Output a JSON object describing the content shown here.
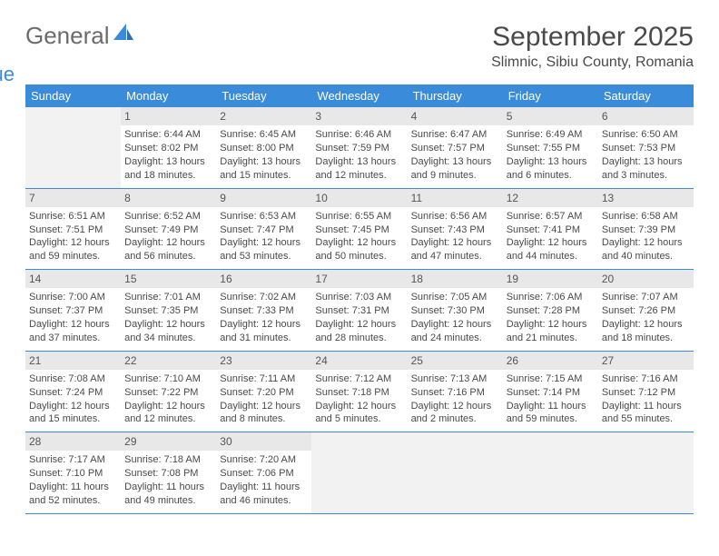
{
  "logo": {
    "word1": "General",
    "word2": "Blue"
  },
  "colors": {
    "brand": "#3a8bd9",
    "headerText": "#4a4a4a"
  },
  "title": "September 2025",
  "location": "Slimnic, Sibiu County, Romania",
  "dayNames": [
    "Sunday",
    "Monday",
    "Tuesday",
    "Wednesday",
    "Thursday",
    "Friday",
    "Saturday"
  ],
  "weeks": [
    [
      {
        "n": "",
        "sr": "",
        "ss": "",
        "dl": ""
      },
      {
        "n": "1",
        "sr": "Sunrise: 6:44 AM",
        "ss": "Sunset: 8:02 PM",
        "dl": "Daylight: 13 hours and 18 minutes."
      },
      {
        "n": "2",
        "sr": "Sunrise: 6:45 AM",
        "ss": "Sunset: 8:00 PM",
        "dl": "Daylight: 13 hours and 15 minutes."
      },
      {
        "n": "3",
        "sr": "Sunrise: 6:46 AM",
        "ss": "Sunset: 7:59 PM",
        "dl": "Daylight: 13 hours and 12 minutes."
      },
      {
        "n": "4",
        "sr": "Sunrise: 6:47 AM",
        "ss": "Sunset: 7:57 PM",
        "dl": "Daylight: 13 hours and 9 minutes."
      },
      {
        "n": "5",
        "sr": "Sunrise: 6:49 AM",
        "ss": "Sunset: 7:55 PM",
        "dl": "Daylight: 13 hours and 6 minutes."
      },
      {
        "n": "6",
        "sr": "Sunrise: 6:50 AM",
        "ss": "Sunset: 7:53 PM",
        "dl": "Daylight: 13 hours and 3 minutes."
      }
    ],
    [
      {
        "n": "7",
        "sr": "Sunrise: 6:51 AM",
        "ss": "Sunset: 7:51 PM",
        "dl": "Daylight: 12 hours and 59 minutes."
      },
      {
        "n": "8",
        "sr": "Sunrise: 6:52 AM",
        "ss": "Sunset: 7:49 PM",
        "dl": "Daylight: 12 hours and 56 minutes."
      },
      {
        "n": "9",
        "sr": "Sunrise: 6:53 AM",
        "ss": "Sunset: 7:47 PM",
        "dl": "Daylight: 12 hours and 53 minutes."
      },
      {
        "n": "10",
        "sr": "Sunrise: 6:55 AM",
        "ss": "Sunset: 7:45 PM",
        "dl": "Daylight: 12 hours and 50 minutes."
      },
      {
        "n": "11",
        "sr": "Sunrise: 6:56 AM",
        "ss": "Sunset: 7:43 PM",
        "dl": "Daylight: 12 hours and 47 minutes."
      },
      {
        "n": "12",
        "sr": "Sunrise: 6:57 AM",
        "ss": "Sunset: 7:41 PM",
        "dl": "Daylight: 12 hours and 44 minutes."
      },
      {
        "n": "13",
        "sr": "Sunrise: 6:58 AM",
        "ss": "Sunset: 7:39 PM",
        "dl": "Daylight: 12 hours and 40 minutes."
      }
    ],
    [
      {
        "n": "14",
        "sr": "Sunrise: 7:00 AM",
        "ss": "Sunset: 7:37 PM",
        "dl": "Daylight: 12 hours and 37 minutes."
      },
      {
        "n": "15",
        "sr": "Sunrise: 7:01 AM",
        "ss": "Sunset: 7:35 PM",
        "dl": "Daylight: 12 hours and 34 minutes."
      },
      {
        "n": "16",
        "sr": "Sunrise: 7:02 AM",
        "ss": "Sunset: 7:33 PM",
        "dl": "Daylight: 12 hours and 31 minutes."
      },
      {
        "n": "17",
        "sr": "Sunrise: 7:03 AM",
        "ss": "Sunset: 7:31 PM",
        "dl": "Daylight: 12 hours and 28 minutes."
      },
      {
        "n": "18",
        "sr": "Sunrise: 7:05 AM",
        "ss": "Sunset: 7:30 PM",
        "dl": "Daylight: 12 hours and 24 minutes."
      },
      {
        "n": "19",
        "sr": "Sunrise: 7:06 AM",
        "ss": "Sunset: 7:28 PM",
        "dl": "Daylight: 12 hours and 21 minutes."
      },
      {
        "n": "20",
        "sr": "Sunrise: 7:07 AM",
        "ss": "Sunset: 7:26 PM",
        "dl": "Daylight: 12 hours and 18 minutes."
      }
    ],
    [
      {
        "n": "21",
        "sr": "Sunrise: 7:08 AM",
        "ss": "Sunset: 7:24 PM",
        "dl": "Daylight: 12 hours and 15 minutes."
      },
      {
        "n": "22",
        "sr": "Sunrise: 7:10 AM",
        "ss": "Sunset: 7:22 PM",
        "dl": "Daylight: 12 hours and 12 minutes."
      },
      {
        "n": "23",
        "sr": "Sunrise: 7:11 AM",
        "ss": "Sunset: 7:20 PM",
        "dl": "Daylight: 12 hours and 8 minutes."
      },
      {
        "n": "24",
        "sr": "Sunrise: 7:12 AM",
        "ss": "Sunset: 7:18 PM",
        "dl": "Daylight: 12 hours and 5 minutes."
      },
      {
        "n": "25",
        "sr": "Sunrise: 7:13 AM",
        "ss": "Sunset: 7:16 PM",
        "dl": "Daylight: 12 hours and 2 minutes."
      },
      {
        "n": "26",
        "sr": "Sunrise: 7:15 AM",
        "ss": "Sunset: 7:14 PM",
        "dl": "Daylight: 11 hours and 59 minutes."
      },
      {
        "n": "27",
        "sr": "Sunrise: 7:16 AM",
        "ss": "Sunset: 7:12 PM",
        "dl": "Daylight: 11 hours and 55 minutes."
      }
    ],
    [
      {
        "n": "28",
        "sr": "Sunrise: 7:17 AM",
        "ss": "Sunset: 7:10 PM",
        "dl": "Daylight: 11 hours and 52 minutes."
      },
      {
        "n": "29",
        "sr": "Sunrise: 7:18 AM",
        "ss": "Sunset: 7:08 PM",
        "dl": "Daylight: 11 hours and 49 minutes."
      },
      {
        "n": "30",
        "sr": "Sunrise: 7:20 AM",
        "ss": "Sunset: 7:06 PM",
        "dl": "Daylight: 11 hours and 46 minutes."
      },
      {
        "n": "",
        "sr": "",
        "ss": "",
        "dl": ""
      },
      {
        "n": "",
        "sr": "",
        "ss": "",
        "dl": ""
      },
      {
        "n": "",
        "sr": "",
        "ss": "",
        "dl": ""
      },
      {
        "n": "",
        "sr": "",
        "ss": "",
        "dl": ""
      }
    ]
  ]
}
